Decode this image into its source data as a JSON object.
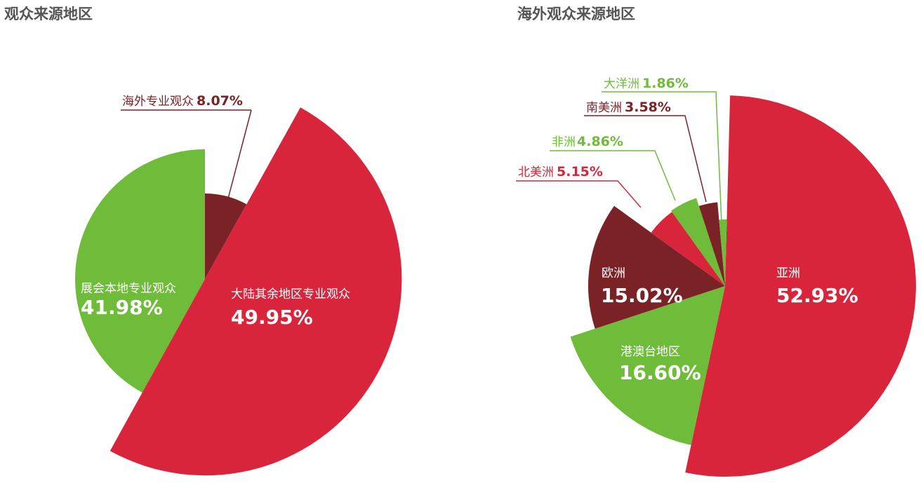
{
  "colors": {
    "red": "#d9253b",
    "green": "#6fbb3a",
    "dark": "#7b2226",
    "white": "#ffffff"
  },
  "chart_data": [
    {
      "type": "pie",
      "title": "观众来源地区",
      "slices": [
        {
          "name": "展会本地专业观众",
          "value": 41.98,
          "label": "41.98%",
          "color": "#6fbb3a"
        },
        {
          "name": "海外专业观众",
          "value": 8.07,
          "label": "8.07%",
          "color": "#7b2226"
        },
        {
          "name": "大陆其余地区专业观众",
          "value": 49.95,
          "label": "49.95%",
          "color": "#d9253b"
        }
      ]
    },
    {
      "type": "pie",
      "title": "海外观众来源地区",
      "slices": [
        {
          "name": "亚洲",
          "value": 52.93,
          "label": "52.93%",
          "color": "#d9253b"
        },
        {
          "name": "港澳台地区",
          "value": 16.6,
          "label": "16.60%",
          "color": "#6fbb3a"
        },
        {
          "name": "欧洲",
          "value": 15.02,
          "label": "15.02%",
          "color": "#7b2226"
        },
        {
          "name": "北美洲",
          "value": 5.15,
          "label": "5.15%",
          "color": "#d9253b"
        },
        {
          "name": "非洲",
          "value": 4.86,
          "label": "4.86%",
          "color": "#6fbb3a"
        },
        {
          "name": "南美洲",
          "value": 3.58,
          "label": "3.58%",
          "color": "#7b2226"
        },
        {
          "name": "大洋洲",
          "value": 1.86,
          "label": "1.86%",
          "color": "#6fbb3a"
        }
      ]
    }
  ]
}
